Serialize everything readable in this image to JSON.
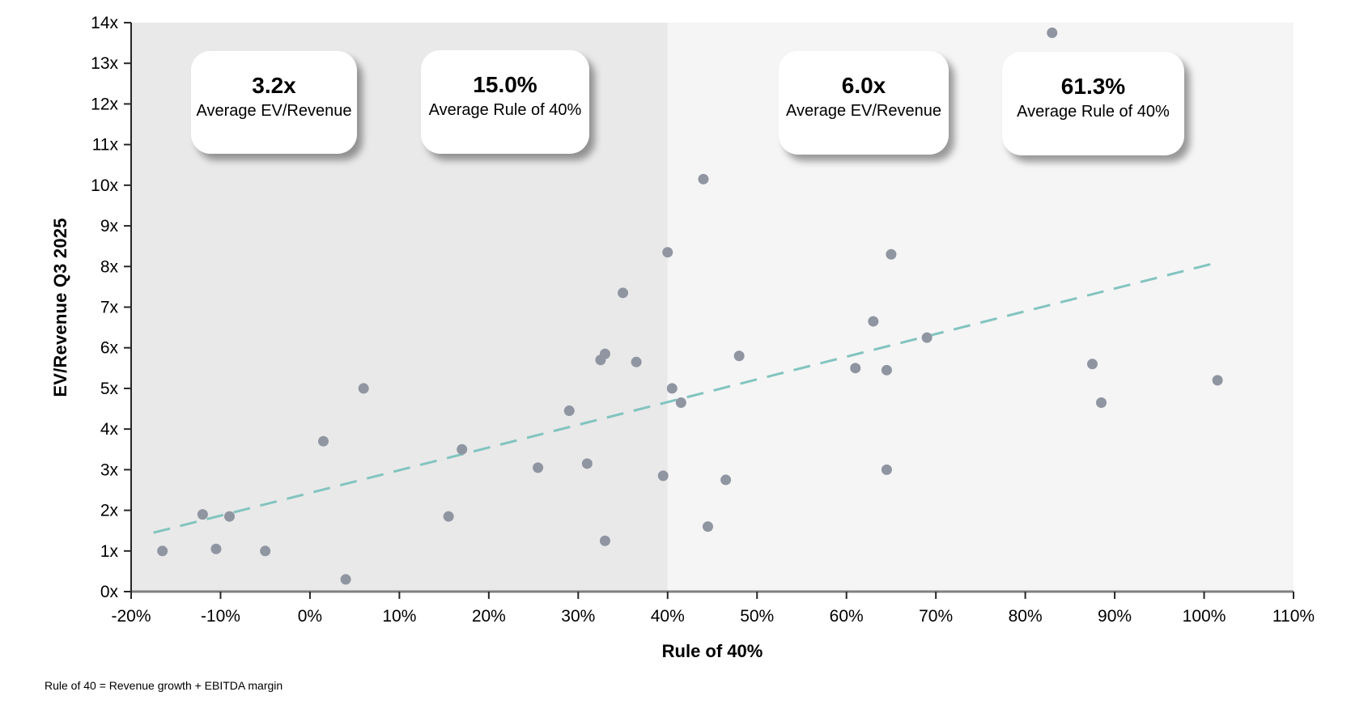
{
  "chart_data": {
    "type": "scatter",
    "title": "",
    "xlabel": "Rule of 40%",
    "ylabel": "EV/Revenue Q3 2025",
    "xlim": [
      -20,
      110
    ],
    "ylim": [
      0,
      14
    ],
    "x_ticks": [
      -20,
      -10,
      0,
      10,
      20,
      30,
      40,
      50,
      60,
      70,
      80,
      90,
      100,
      110
    ],
    "x_tick_suffix": "%",
    "y_ticks": [
      0,
      1,
      2,
      3,
      4,
      5,
      6,
      7,
      8,
      9,
      10,
      11,
      12,
      13,
      14
    ],
    "y_tick_suffix": "x",
    "grid": false,
    "legend": "none",
    "points": [
      [
        -16.5,
        1.0
      ],
      [
        -12,
        1.9
      ],
      [
        -10.5,
        1.05
      ],
      [
        -9,
        1.85
      ],
      [
        -5,
        1.0
      ],
      [
        1.5,
        3.7
      ],
      [
        4,
        0.3
      ],
      [
        6,
        5.0
      ],
      [
        15.5,
        1.85
      ],
      [
        17,
        3.5
      ],
      [
        25.5,
        3.05
      ],
      [
        29,
        4.45
      ],
      [
        31,
        3.15
      ],
      [
        32.5,
        5.7
      ],
      [
        33,
        5.85
      ],
      [
        33,
        1.25
      ],
      [
        35,
        7.35
      ],
      [
        36.5,
        5.65
      ],
      [
        39.5,
        2.85
      ],
      [
        40,
        8.35
      ],
      [
        40.5,
        5.0
      ],
      [
        41.5,
        4.65
      ],
      [
        44,
        10.15
      ],
      [
        44.5,
        1.6
      ],
      [
        46.5,
        2.75
      ],
      [
        48,
        5.8
      ],
      [
        61,
        5.5
      ],
      [
        63,
        6.65
      ],
      [
        64.5,
        5.45
      ],
      [
        64.5,
        3.0
      ],
      [
        65,
        8.3
      ],
      [
        69,
        6.25
      ],
      [
        83,
        13.75
      ],
      [
        87.5,
        5.6
      ],
      [
        88.5,
        4.65
      ],
      [
        101.5,
        5.2
      ]
    ],
    "trendline": {
      "style": "dashed",
      "x1": -17.5,
      "y1": 1.45,
      "x2": 101.5,
      "y2": 8.1
    },
    "regions": [
      {
        "name": "below-40",
        "x1": -20,
        "x2": 40,
        "color": "#e9e9e9"
      },
      {
        "name": "above-40",
        "x1": 40,
        "x2": 110,
        "color": "#f5f5f6"
      }
    ],
    "colors": {
      "point": "#8f95a1",
      "trend": "#82c4bf",
      "x_axis": "#808080",
      "y_axis": "#262626",
      "tick": "#262626",
      "text": "#000000"
    }
  },
  "callouts": [
    {
      "value": "3.2x",
      "label": "Average EV/Revenue"
    },
    {
      "value": "15.0%",
      "label": "Average Rule of 40%"
    },
    {
      "value": "6.0x",
      "label": "Average EV/Revenue"
    },
    {
      "value": "61.3%",
      "label": "Average Rule of 40%"
    }
  ],
  "footnote": "Rule of 40 = Revenue growth + EBITDA margin"
}
